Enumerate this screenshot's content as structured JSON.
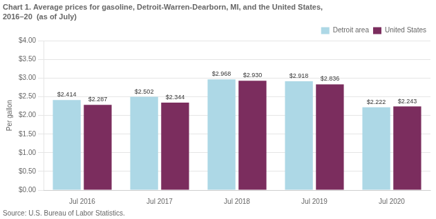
{
  "chart_data": {
    "type": "bar",
    "title": "Chart 1. Average prices for gasoline, Detroit-Warren-Dearborn, MI, and the United States,",
    "subtitle": "2016–20  (as of July)",
    "ylabel": "Per gallon",
    "source": "Source: U.S. Bureau of Labor Statistics.",
    "categories": [
      "Jul 2016",
      "Jul 2017",
      "Jul 2018",
      "Jul 2019",
      "Jul 2020"
    ],
    "series": [
      {
        "name": "Detroit area",
        "color": "#ADD8E6",
        "values": [
          2.414,
          2.502,
          2.968,
          2.918,
          2.222
        ],
        "value_labels": [
          "$2.414",
          "$2.502",
          "$2.968",
          "$2.918",
          "$2.222"
        ]
      },
      {
        "name": "United States",
        "color": "#7B2D5E",
        "values": [
          2.287,
          2.344,
          2.93,
          2.836,
          2.243
        ],
        "value_labels": [
          "$2.287",
          "$2.344",
          "$2.930",
          "$2.836",
          "$2.243"
        ]
      }
    ],
    "ylim": [
      0,
      4.0
    ],
    "yticks": [
      {
        "value": 0.0,
        "label": "$0.00"
      },
      {
        "value": 0.5,
        "label": "$0.50"
      },
      {
        "value": 1.0,
        "label": "$1.00"
      },
      {
        "value": 1.5,
        "label": "$1.50"
      },
      {
        "value": 2.0,
        "label": "$2.00"
      },
      {
        "value": 2.5,
        "label": "$2.50"
      },
      {
        "value": 3.0,
        "label": "$3.00"
      },
      {
        "value": 3.5,
        "label": "$3.50"
      },
      {
        "value": 4.0,
        "label": "$4.00"
      }
    ],
    "grid": true,
    "legend": "upper right",
    "data_labels": true
  }
}
